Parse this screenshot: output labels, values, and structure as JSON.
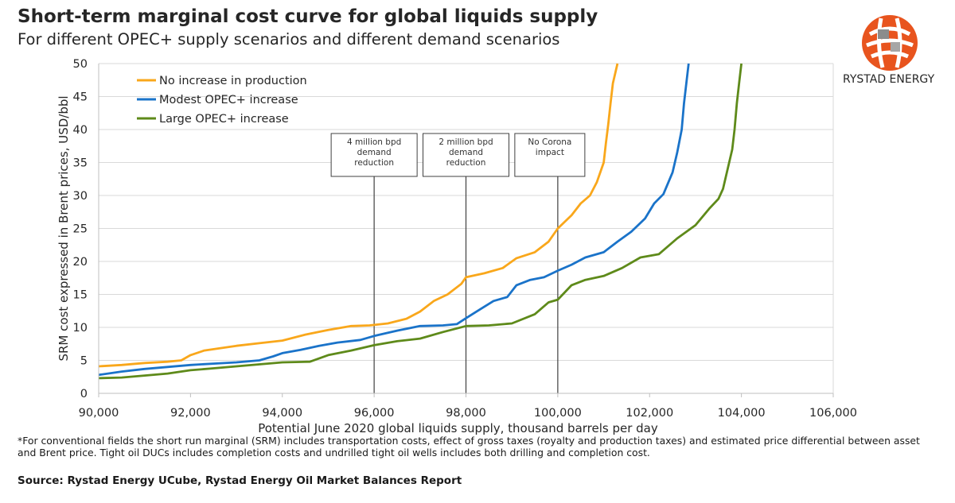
{
  "header": {
    "title": "Short-term marginal cost curve for global liquids supply",
    "subtitle": "For different OPEC+ supply scenarios and different demand scenarios",
    "brand": "RYSTAD ENERGY"
  },
  "footer": {
    "footnote": "*For conventional fields the short run marginal (SRM) includes transportation costs, effect of gross taxes (royalty and production taxes) and estimated price differential between asset and Brent price. Tight oil DUCs includes completion costs and undrilled tight oil wells includes both drilling and completion cost.",
    "source": "Source: Rystad Energy UCube, Rystad Energy Oil Market Balances Report"
  },
  "colors": {
    "yellow": "#F9A71B",
    "blue": "#1A73C9",
    "green": "#5E8A1A",
    "grid": "#D9D9D9",
    "annotation_line": "#404040"
  },
  "chart_data": {
    "type": "line",
    "xlabel": "Potential June 2020 global liquids supply, thousand barrels per day",
    "ylabel": "SRM cost expressed in Brent prices, USD/bbl",
    "xlim": [
      90000,
      106000
    ],
    "ylim": [
      0,
      50
    ],
    "x_ticks": [
      "90,000",
      "92,000",
      "94,000",
      "96,000",
      "98,000",
      "100,000",
      "102,000",
      "104,000",
      "106,000"
    ],
    "y_ticks": [
      "0",
      "5",
      "10",
      "15",
      "20",
      "25",
      "30",
      "35",
      "40",
      "45",
      "50"
    ],
    "grid": "horizontal",
    "legend_position": "top-left",
    "series": [
      {
        "name": "No increase in production",
        "color": "#F9A71B",
        "points": [
          [
            90000,
            4.1
          ],
          [
            90500,
            4.3
          ],
          [
            91000,
            4.6
          ],
          [
            91500,
            4.8
          ],
          [
            91800,
            5.0
          ],
          [
            92000,
            5.8
          ],
          [
            92300,
            6.5
          ],
          [
            92700,
            6.9
          ],
          [
            93000,
            7.2
          ],
          [
            93500,
            7.6
          ],
          [
            94000,
            8.0
          ],
          [
            94500,
            8.9
          ],
          [
            95000,
            9.6
          ],
          [
            95500,
            10.2
          ],
          [
            95900,
            10.3
          ],
          [
            96300,
            10.6
          ],
          [
            96700,
            11.3
          ],
          [
            97000,
            12.4
          ],
          [
            97300,
            14.0
          ],
          [
            97600,
            15.0
          ],
          [
            97900,
            16.6
          ],
          [
            98000,
            17.6
          ],
          [
            98400,
            18.2
          ],
          [
            98800,
            19.0
          ],
          [
            99100,
            20.5
          ],
          [
            99500,
            21.4
          ],
          [
            99800,
            23.0
          ],
          [
            100000,
            25.0
          ],
          [
            100300,
            27.0
          ],
          [
            100500,
            28.8
          ],
          [
            100700,
            30.0
          ],
          [
            100850,
            32.0
          ],
          [
            101000,
            35.0
          ],
          [
            101050,
            38.0
          ],
          [
            101100,
            40.8
          ],
          [
            101150,
            44.0
          ],
          [
            101200,
            47.0
          ],
          [
            101300,
            50.0
          ]
        ]
      },
      {
        "name": "Modest OPEC+ increase",
        "color": "#1A73C9",
        "points": [
          [
            90000,
            2.8
          ],
          [
            90500,
            3.3
          ],
          [
            91000,
            3.7
          ],
          [
            91500,
            4.0
          ],
          [
            92000,
            4.3
          ],
          [
            92500,
            4.5
          ],
          [
            93000,
            4.7
          ],
          [
            93500,
            5.0
          ],
          [
            93800,
            5.6
          ],
          [
            94000,
            6.1
          ],
          [
            94400,
            6.6
          ],
          [
            94800,
            7.2
          ],
          [
            95200,
            7.7
          ],
          [
            95700,
            8.1
          ],
          [
            96000,
            8.7
          ],
          [
            96500,
            9.5
          ],
          [
            97000,
            10.2
          ],
          [
            97500,
            10.3
          ],
          [
            97800,
            10.5
          ],
          [
            98000,
            11.4
          ],
          [
            98300,
            12.7
          ],
          [
            98600,
            14.0
          ],
          [
            98900,
            14.6
          ],
          [
            99100,
            16.4
          ],
          [
            99400,
            17.2
          ],
          [
            99700,
            17.6
          ],
          [
            100000,
            18.6
          ],
          [
            100300,
            19.5
          ],
          [
            100600,
            20.6
          ],
          [
            101000,
            21.4
          ],
          [
            101300,
            23.0
          ],
          [
            101600,
            24.5
          ],
          [
            101900,
            26.5
          ],
          [
            102100,
            28.8
          ],
          [
            102300,
            30.2
          ],
          [
            102500,
            33.5
          ],
          [
            102600,
            36.5
          ],
          [
            102700,
            40.0
          ],
          [
            102750,
            44.0
          ],
          [
            102800,
            47.0
          ],
          [
            102850,
            50.0
          ]
        ]
      },
      {
        "name": "Large OPEC+ increase",
        "color": "#5E8A1A",
        "points": [
          [
            90000,
            2.3
          ],
          [
            90500,
            2.4
          ],
          [
            91000,
            2.7
          ],
          [
            91500,
            3.0
          ],
          [
            92000,
            3.5
          ],
          [
            92500,
            3.8
          ],
          [
            93000,
            4.1
          ],
          [
            93500,
            4.4
          ],
          [
            94000,
            4.7
          ],
          [
            94600,
            4.8
          ],
          [
            95000,
            5.8
          ],
          [
            95500,
            6.5
          ],
          [
            96000,
            7.3
          ],
          [
            96500,
            7.9
          ],
          [
            97000,
            8.3
          ],
          [
            97500,
            9.3
          ],
          [
            98000,
            10.2
          ],
          [
            98500,
            10.3
          ],
          [
            99000,
            10.6
          ],
          [
            99500,
            12.0
          ],
          [
            99800,
            13.8
          ],
          [
            100000,
            14.2
          ],
          [
            100300,
            16.4
          ],
          [
            100600,
            17.2
          ],
          [
            101000,
            17.8
          ],
          [
            101400,
            19.0
          ],
          [
            101800,
            20.6
          ],
          [
            102200,
            21.1
          ],
          [
            102600,
            23.5
          ],
          [
            103000,
            25.5
          ],
          [
            103300,
            28.0
          ],
          [
            103500,
            29.5
          ],
          [
            103600,
            31.0
          ],
          [
            103700,
            34.0
          ],
          [
            103800,
            37.0
          ],
          [
            103850,
            40.0
          ],
          [
            103900,
            44.0
          ],
          [
            103950,
            47.0
          ],
          [
            104000,
            50.0
          ]
        ]
      }
    ],
    "annotations": [
      {
        "label_lines": [
          "4 million bpd",
          "demand",
          "reduction"
        ],
        "x": 96000
      },
      {
        "label_lines": [
          "2 million bpd",
          "demand",
          "reduction"
        ],
        "x": 98000
      },
      {
        "label_lines": [
          "No Corona",
          "impact"
        ],
        "x": 100000
      }
    ]
  }
}
